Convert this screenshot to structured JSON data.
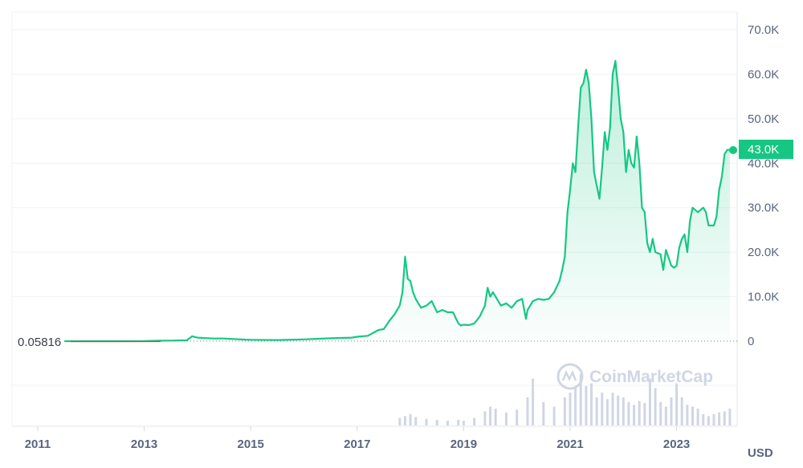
{
  "chart_data": {
    "type": "area",
    "x_ticks": [
      "2011",
      "2013",
      "2015",
      "2017",
      "2019",
      "2021",
      "2023"
    ],
    "y_ticks": [
      "70.0K",
      "60.0K",
      "50.0K",
      "40.0K",
      "30.0K",
      "20.0K",
      "10.0K",
      "0"
    ],
    "ylim": [
      0,
      70000
    ],
    "unit_label": "USD",
    "start_value_label": "0.05816",
    "current_value_label": "43.0K",
    "watermark": "CoinMarketCap",
    "grid": true,
    "series": [
      {
        "color": "#16c784",
        "x": [
          2011.5,
          2012.0,
          2012.5,
          2013.0,
          2013.3,
          2013.5,
          2013.8,
          2013.9,
          2014.0,
          2014.3,
          2014.5,
          2014.9,
          2015.0,
          2015.5,
          2016.0,
          2016.5,
          2016.9,
          2017.0,
          2017.2,
          2017.4,
          2017.5,
          2017.6,
          2017.7,
          2017.8,
          2017.85,
          2017.9,
          2017.95,
          2018.0,
          2018.05,
          2018.1,
          2018.15,
          2018.2,
          2018.3,
          2018.4,
          2018.5,
          2018.6,
          2018.7,
          2018.8,
          2018.9,
          2018.95,
          2019.0,
          2019.1,
          2019.2,
          2019.3,
          2019.4,
          2019.45,
          2019.5,
          2019.55,
          2019.6,
          2019.7,
          2019.8,
          2019.9,
          2020.0,
          2020.1,
          2020.17,
          2020.2,
          2020.3,
          2020.4,
          2020.5,
          2020.6,
          2020.7,
          2020.8,
          2020.85,
          2020.9,
          2020.95,
          2021.0,
          2021.05,
          2021.1,
          2021.15,
          2021.2,
          2021.25,
          2021.3,
          2021.35,
          2021.4,
          2021.45,
          2021.5,
          2021.55,
          2021.6,
          2021.65,
          2021.7,
          2021.75,
          2021.8,
          2021.85,
          2021.9,
          2021.95,
          2022.0,
          2022.05,
          2022.1,
          2022.15,
          2022.2,
          2022.25,
          2022.3,
          2022.35,
          2022.4,
          2022.45,
          2022.5,
          2022.55,
          2022.6,
          2022.7,
          2022.75,
          2022.8,
          2022.9,
          2022.95,
          2023.0,
          2023.05,
          2023.1,
          2023.15,
          2023.2,
          2023.25,
          2023.3,
          2023.4,
          2023.5,
          2023.55,
          2023.6,
          2023.7,
          2023.75,
          2023.8,
          2023.85,
          2023.9,
          2023.95,
          2024.0
        ],
        "values": [
          5,
          6,
          8,
          13,
          100,
          120,
          200,
          1100,
          800,
          600,
          600,
          350,
          300,
          250,
          400,
          650,
          800,
          1000,
          1200,
          2500,
          2700,
          4500,
          6000,
          8000,
          11000,
          19000,
          14000,
          13500,
          11000,
          9500,
          8500,
          7500,
          8000,
          9000,
          6500,
          7000,
          6500,
          6500,
          4000,
          3500,
          3700,
          3600,
          4000,
          5500,
          8000,
          12000,
          10000,
          11000,
          10000,
          8000,
          8500,
          7500,
          9000,
          9500,
          5000,
          7000,
          9000,
          9500,
          9300,
          9500,
          11000,
          13500,
          16000,
          19000,
          29000,
          34000,
          40000,
          38000,
          48000,
          57000,
          58000,
          61000,
          58000,
          50000,
          38000,
          35000,
          32000,
          39000,
          47000,
          43000,
          48000,
          60000,
          63000,
          57000,
          50000,
          47000,
          38000,
          43000,
          40000,
          39000,
          46000,
          40000,
          30000,
          29000,
          22000,
          20000,
          23000,
          20000,
          19500,
          16000,
          20500,
          17000,
          16500,
          17000,
          21000,
          23000,
          24000,
          20000,
          27000,
          30000,
          29000,
          30000,
          29000,
          26000,
          26000,
          28000,
          34000,
          37000,
          42000,
          43000,
          43000
        ]
      }
    ],
    "volume": {
      "x": [
        2017.8,
        2017.9,
        2018.0,
        2018.1,
        2018.3,
        2018.5,
        2018.7,
        2018.9,
        2019.0,
        2019.2,
        2019.4,
        2019.5,
        2019.6,
        2019.8,
        2020.0,
        2020.2,
        2020.3,
        2020.5,
        2020.7,
        2020.9,
        2021.0,
        2021.1,
        2021.2,
        2021.3,
        2021.4,
        2021.5,
        2021.6,
        2021.7,
        2021.8,
        2021.9,
        2022.0,
        2022.1,
        2022.2,
        2022.3,
        2022.4,
        2022.5,
        2022.6,
        2022.7,
        2022.8,
        2022.9,
        2023.0,
        2023.1,
        2023.2,
        2023.3,
        2023.4,
        2023.5,
        2023.6,
        2023.7,
        2023.8,
        2023.9,
        2024.0
      ],
      "values": [
        8,
        10,
        12,
        9,
        7,
        6,
        5,
        6,
        5,
        8,
        15,
        20,
        18,
        14,
        17,
        30,
        50,
        25,
        20,
        30,
        35,
        40,
        55,
        42,
        45,
        30,
        35,
        28,
        35,
        32,
        30,
        25,
        22,
        26,
        24,
        50,
        40,
        25,
        20,
        30,
        45,
        30,
        22,
        20,
        18,
        12,
        10,
        12,
        14,
        15,
        18
      ]
    }
  }
}
